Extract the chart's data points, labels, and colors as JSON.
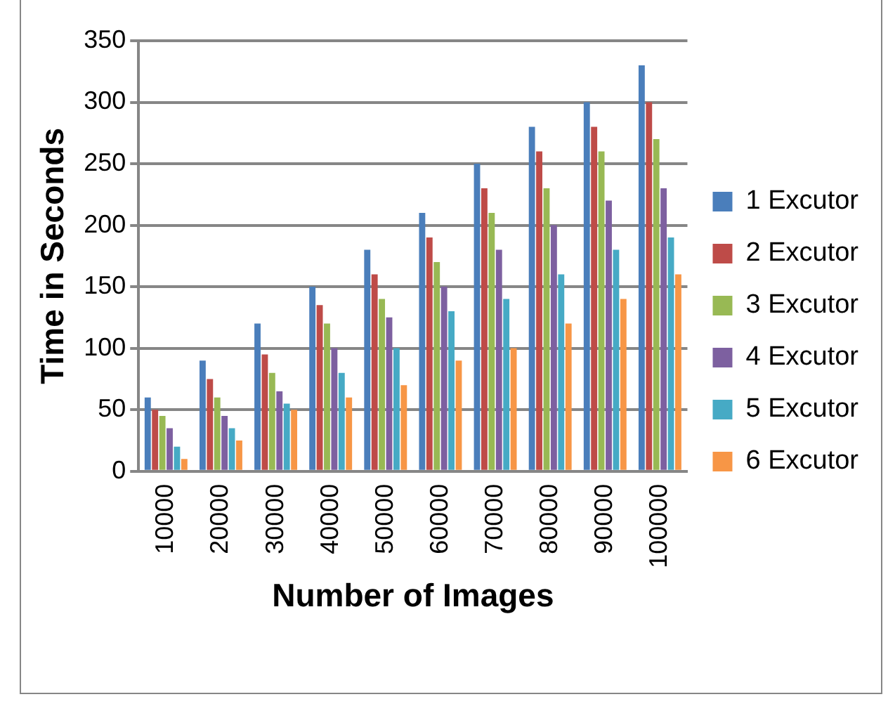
{
  "chart_data": {
    "type": "bar",
    "xlabel": "Number of Images",
    "ylabel": "Time in Seconds",
    "categories": [
      "10000",
      "20000",
      "30000",
      "40000",
      "50000",
      "60000",
      "70000",
      "80000",
      "90000",
      "100000"
    ],
    "series": [
      {
        "name": "1 Excutor",
        "color": "#4a7ebb",
        "values": [
          60,
          90,
          120,
          150,
          180,
          210,
          250,
          280,
          300,
          330
        ]
      },
      {
        "name": "2 Excutor",
        "color": "#be4b48",
        "values": [
          50,
          75,
          95,
          135,
          160,
          190,
          230,
          260,
          280,
          300
        ]
      },
      {
        "name": "3 Excutor",
        "color": "#98b954",
        "values": [
          45,
          60,
          80,
          120,
          140,
          170,
          210,
          230,
          260,
          270
        ]
      },
      {
        "name": "4 Excutor",
        "color": "#7d60a0",
        "values": [
          35,
          45,
          65,
          100,
          125,
          150,
          180,
          200,
          220,
          230
        ]
      },
      {
        "name": "5 Excutor",
        "color": "#46aac5",
        "values": [
          20,
          35,
          55,
          80,
          100,
          130,
          140,
          160,
          180,
          190
        ]
      },
      {
        "name": "6 Excutor",
        "color": "#f79646",
        "values": [
          10,
          25,
          50,
          60,
          70,
          90,
          100,
          120,
          140,
          160
        ]
      }
    ],
    "ylim": [
      0,
      350
    ],
    "yticks": [
      0,
      50,
      100,
      150,
      200,
      250,
      300,
      350
    ],
    "grid": "y",
    "legend": "right"
  }
}
